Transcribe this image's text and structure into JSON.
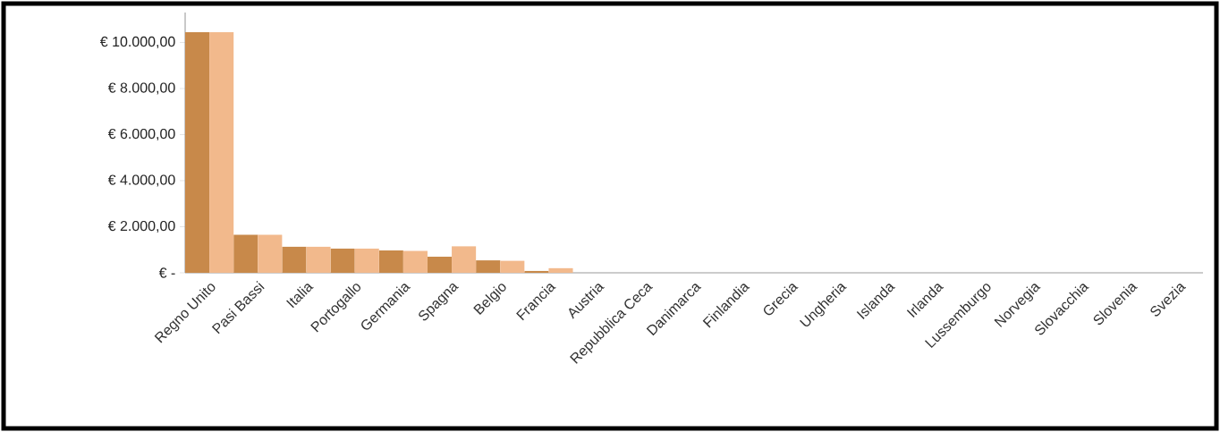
{
  "chart_data": {
    "type": "bar",
    "categories": [
      "Regno Unito",
      "Pasi Bassi",
      "Italia",
      "Portogallo",
      "Germania",
      "Spagna",
      "Belgio",
      "Francia",
      "Austria",
      "Repubblica Ceca",
      "Danimarca",
      "Finlandia",
      "Grecia",
      "Ungheria",
      "Islanda",
      "Irlanda",
      "Lussemburgo",
      "Norvegia",
      "Slovacchia",
      "Slovenia",
      "Svezia"
    ],
    "series": [
      {
        "color": "#c8894a",
        "values": [
          10450,
          1650,
          1130,
          1050,
          970,
          700,
          540,
          80,
          0,
          0,
          0,
          0,
          0,
          0,
          0,
          0,
          0,
          0,
          0,
          0,
          0
        ]
      },
      {
        "color": "#f2b98c",
        "values": [
          10450,
          1650,
          1130,
          1050,
          950,
          1150,
          520,
          200,
          0,
          0,
          0,
          0,
          0,
          0,
          0,
          0,
          0,
          0,
          0,
          0,
          0
        ]
      }
    ],
    "ylim": [
      0,
      11300
    ],
    "yticks": [
      {
        "value": 0,
        "label": "€ -"
      },
      {
        "value": 2000,
        "label": "€ 2.000,00"
      },
      {
        "value": 4000,
        "label": "€ 4.000,00"
      },
      {
        "value": 6000,
        "label": "€ 6.000,00"
      },
      {
        "value": 8000,
        "label": "€ 8.000,00"
      },
      {
        "value": 10000,
        "label": "€ 10.000,00"
      }
    ]
  }
}
